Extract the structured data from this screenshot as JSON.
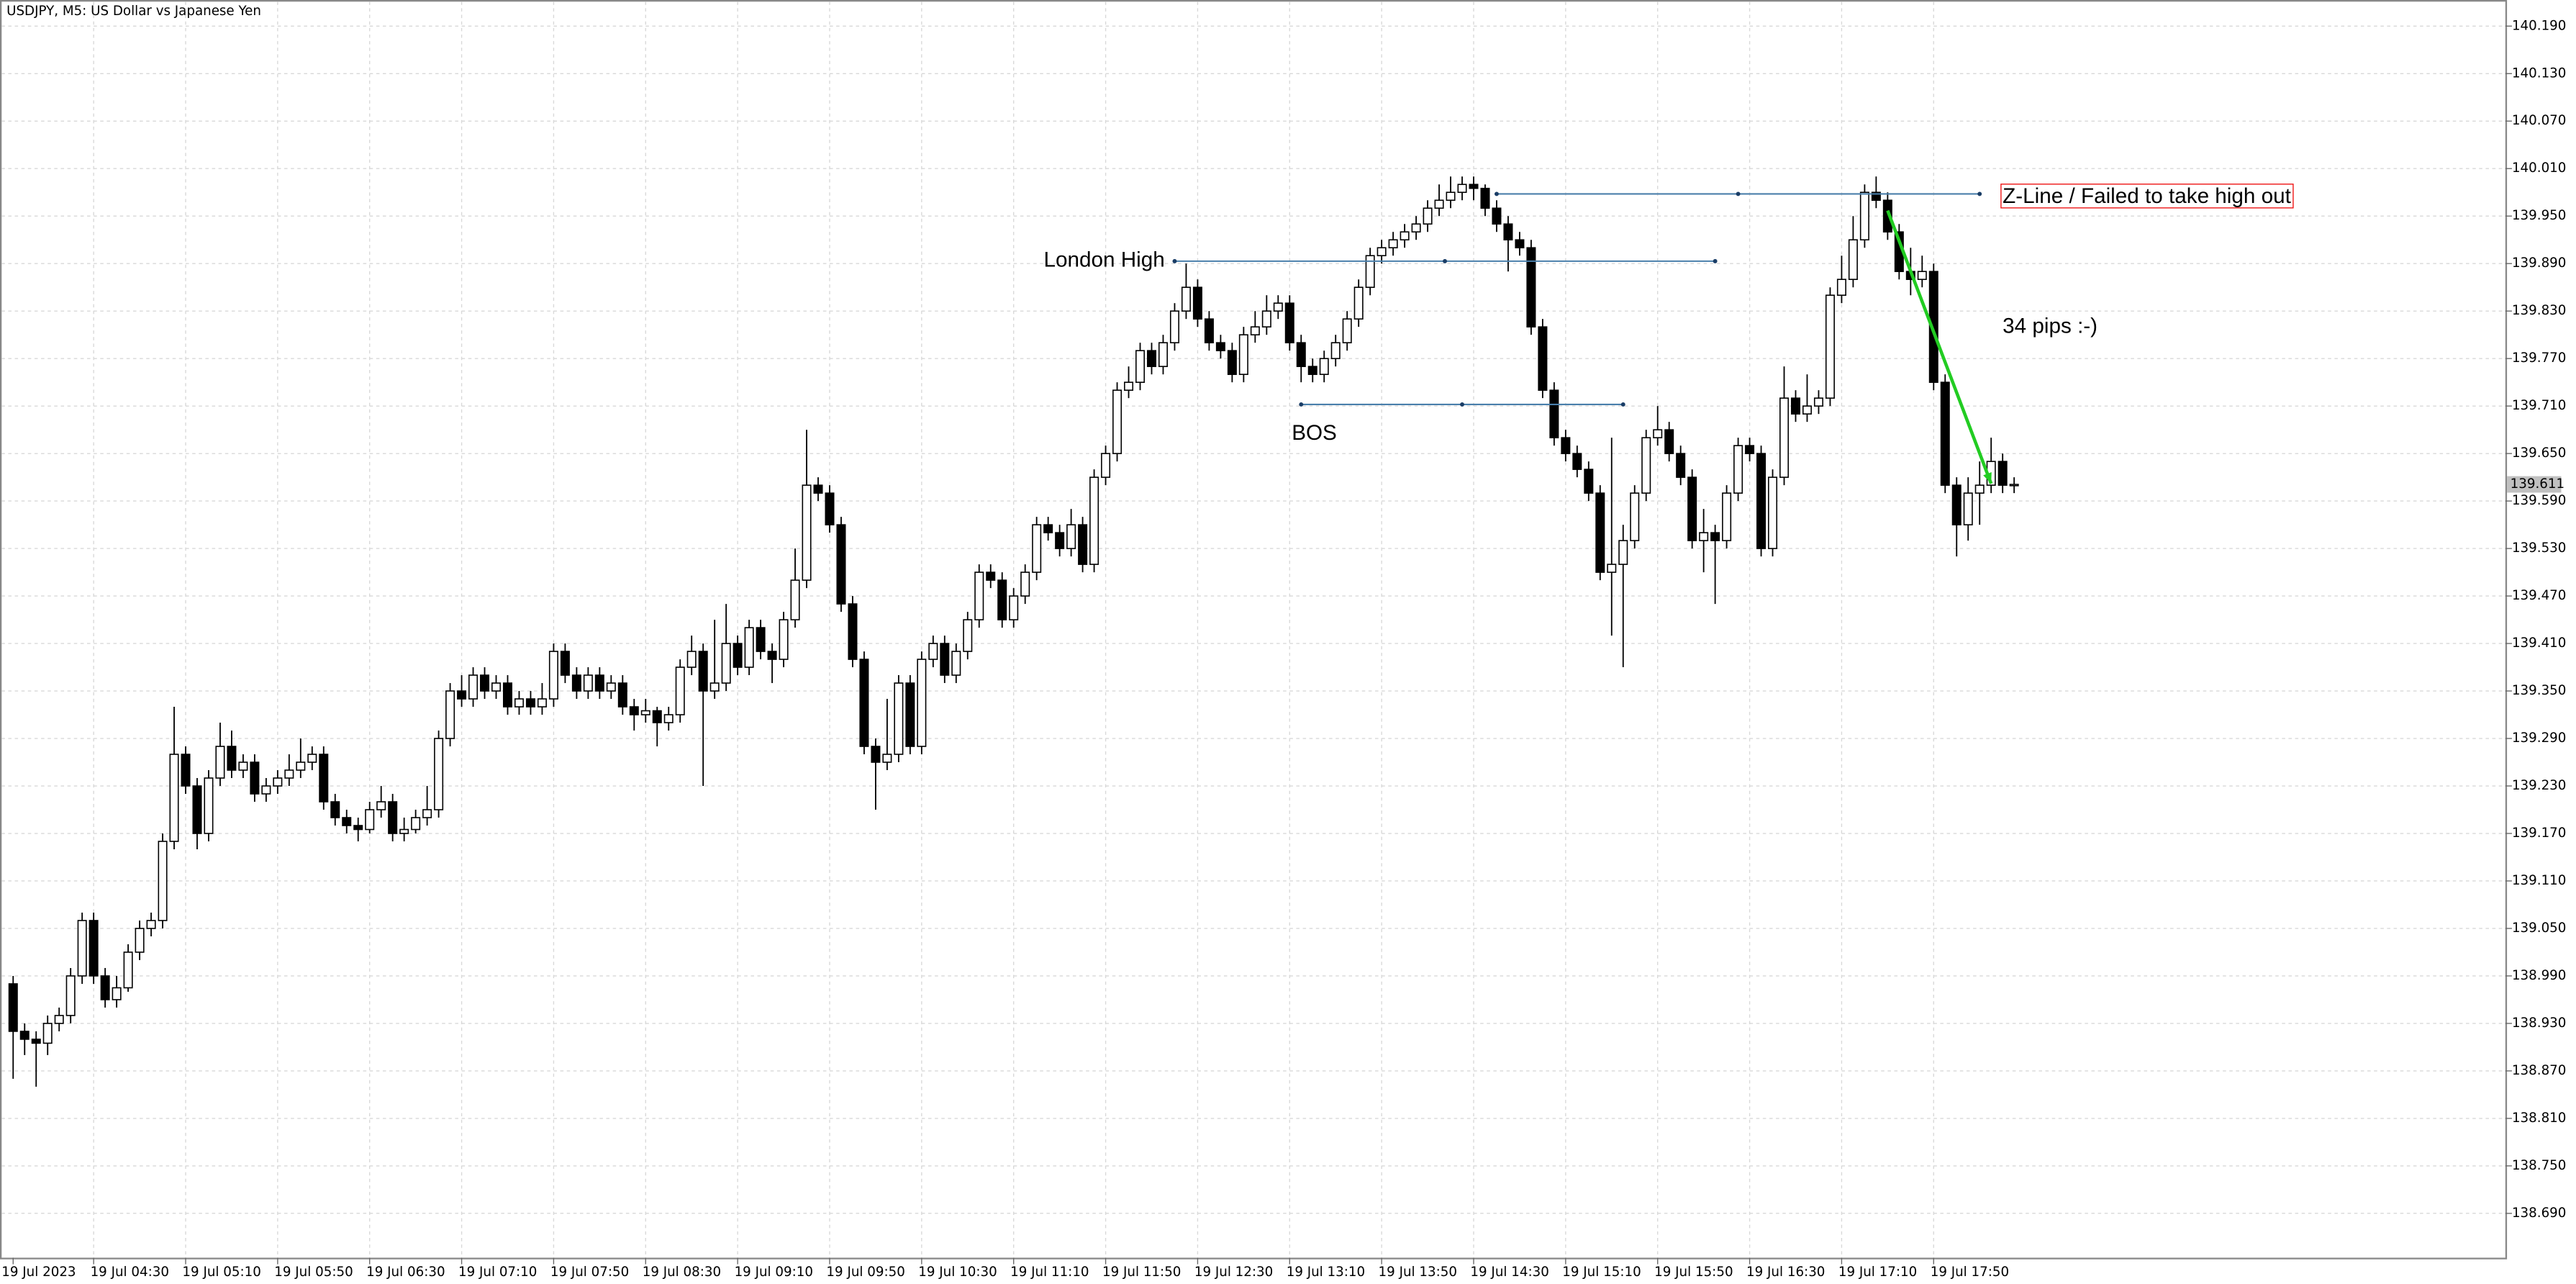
{
  "chart_data": {
    "type": "candlestick",
    "title": "USDJPY, M5:  US Dollar vs Japanese Yen",
    "categories": [
      "19 Jul 2023",
      null,
      null,
      null,
      null,
      null,
      null,
      "19 Jul 04:30",
      null,
      null,
      null,
      null,
      null,
      null,
      null,
      "19 Jul 05:10",
      null,
      null,
      null,
      null,
      null,
      null,
      null,
      "19 Jul 05:50",
      null,
      null,
      null,
      null,
      null,
      null,
      null,
      "19 Jul 06:30",
      null,
      null,
      null,
      null,
      null,
      null,
      null,
      "19 Jul 07:10",
      null,
      null,
      null,
      null,
      null,
      null,
      null,
      "19 Jul 07:50",
      null,
      null,
      null,
      null,
      null,
      null,
      null,
      "19 Jul 08:30",
      null,
      null,
      null,
      null,
      null,
      null,
      null,
      "19 Jul 09:10",
      null,
      null,
      null,
      null,
      null,
      null,
      null,
      "19 Jul 09:50",
      null,
      null,
      null,
      null,
      null,
      null,
      null,
      "19 Jul 10:30",
      null,
      null,
      null,
      null,
      null,
      null,
      null,
      "19 Jul 11:10",
      null,
      null,
      null,
      null,
      null,
      null,
      null,
      "19 Jul 11:50",
      null,
      null,
      null,
      null,
      null,
      null,
      null,
      "19 Jul 12:30",
      null,
      null,
      null,
      null,
      null,
      null,
      null,
      "19 Jul 13:10",
      null,
      null,
      null,
      null,
      null,
      null,
      null,
      "19 Jul 13:50",
      null,
      null,
      null,
      null,
      null,
      null,
      null,
      "19 Jul 14:30",
      null,
      null,
      null,
      null,
      null,
      null,
      null,
      "19 Jul 15:10",
      null,
      null,
      null,
      null,
      null,
      null,
      null,
      "19 Jul 15:50",
      null,
      null,
      null,
      null,
      null,
      null,
      null,
      "19 Jul 16:30",
      null,
      null,
      null,
      null,
      null,
      null,
      null,
      "19 Jul 17:10",
      null,
      null,
      null,
      null,
      null,
      null,
      null,
      "19 Jul 17:50",
      null,
      null,
      null,
      null,
      null,
      null,
      null
    ],
    "open": [
      138.98,
      138.92,
      138.91,
      138.905,
      138.93,
      138.94,
      138.99,
      139.06,
      138.99,
      138.96,
      138.975,
      139.02,
      139.05,
      139.06,
      139.16,
      139.27,
      139.23,
      139.17,
      139.24,
      139.28,
      139.25,
      139.26,
      139.22,
      139.23,
      139.24,
      139.25,
      139.26,
      139.27,
      139.21,
      139.19,
      139.18,
      139.175,
      139.2,
      139.21,
      139.17,
      139.175,
      139.19,
      139.2,
      139.29,
      139.35,
      139.34,
      139.37,
      139.35,
      139.36,
      139.33,
      139.34,
      139.33,
      139.34,
      139.4,
      139.37,
      139.35,
      139.37,
      139.35,
      139.36,
      139.33,
      139.32,
      139.325,
      139.31,
      139.32,
      139.38,
      139.4,
      139.35,
      139.36,
      139.41,
      139.38,
      139.43,
      139.4,
      139.39,
      139.44,
      139.49,
      139.61,
      139.6,
      139.56,
      139.46,
      139.39,
      139.28,
      139.26,
      139.27,
      139.36,
      139.28,
      139.39,
      139.41,
      139.37,
      139.4,
      139.44,
      139.5,
      139.49,
      139.44,
      139.47,
      139.5,
      139.56,
      139.55,
      139.53,
      139.56,
      139.51,
      139.62,
      139.65,
      139.73,
      139.74,
      139.78,
      139.76,
      139.79,
      139.83,
      139.86,
      139.82,
      139.79,
      139.78,
      139.75,
      139.8,
      139.81,
      139.83,
      139.84,
      139.79,
      139.76,
      139.75,
      139.77,
      139.79,
      139.82,
      139.86,
      139.9,
      139.91,
      139.92,
      139.93,
      139.94,
      139.96,
      139.97,
      139.98,
      139.99,
      139.985,
      139.96,
      139.94,
      139.92,
      139.91,
      139.81,
      139.73,
      139.67,
      139.65,
      139.63,
      139.6,
      139.5,
      139.51,
      139.54,
      139.6,
      139.67,
      139.68,
      139.65,
      139.62,
      139.54,
      139.55,
      139.54,
      139.6,
      139.66,
      139.65,
      139.53,
      139.62,
      139.72,
      139.7,
      139.71,
      139.72,
      139.85,
      139.87,
      139.92,
      139.98,
      139.97,
      139.93,
      139.88,
      139.87,
      139.88,
      139.74,
      139.61,
      139.56,
      139.6,
      139.61,
      139.64,
      139.61
    ],
    "high": [
      138.99,
      138.93,
      138.92,
      138.94,
      138.95,
      139.0,
      139.07,
      139.07,
      139.0,
      138.99,
      139.03,
      139.06,
      139.07,
      139.17,
      139.33,
      139.28,
      139.24,
      139.25,
      139.31,
      139.3,
      139.27,
      139.27,
      139.24,
      139.25,
      139.27,
      139.29,
      139.28,
      139.28,
      139.22,
      139.2,
      139.19,
      139.21,
      139.23,
      139.22,
      139.19,
      139.2,
      139.23,
      139.3,
      139.36,
      139.37,
      139.38,
      139.38,
      139.37,
      139.37,
      139.35,
      139.35,
      139.36,
      139.41,
      139.41,
      139.38,
      139.38,
      139.38,
      139.37,
      139.37,
      139.34,
      139.34,
      139.33,
      139.33,
      139.39,
      139.42,
      139.41,
      139.44,
      139.46,
      139.42,
      139.44,
      139.44,
      139.41,
      139.45,
      139.53,
      139.68,
      139.62,
      139.61,
      139.57,
      139.47,
      139.4,
      139.29,
      139.34,
      139.37,
      139.37,
      139.4,
      139.42,
      139.42,
      139.41,
      139.45,
      139.51,
      139.51,
      139.5,
      139.48,
      139.51,
      139.57,
      139.57,
      139.56,
      139.58,
      139.57,
      139.63,
      139.66,
      139.74,
      139.76,
      139.79,
      139.79,
      139.8,
      139.84,
      139.89,
      139.87,
      139.83,
      139.8,
      139.79,
      139.81,
      139.83,
      139.85,
      139.85,
      139.85,
      139.8,
      139.77,
      139.78,
      139.8,
      139.83,
      139.87,
      139.91,
      139.92,
      139.93,
      139.94,
      139.95,
      139.97,
      139.99,
      140.0,
      140.0,
      140.0,
      139.99,
      139.97,
      139.95,
      139.93,
      139.92,
      139.82,
      139.74,
      139.68,
      139.66,
      139.64,
      139.61,
      139.67,
      139.56,
      139.61,
      139.68,
      139.71,
      139.69,
      139.66,
      139.63,
      139.58,
      139.56,
      139.61,
      139.67,
      139.67,
      139.66,
      139.63,
      139.76,
      139.73,
      139.75,
      139.73,
      139.86,
      139.9,
      139.95,
      139.99,
      140.0,
      139.98,
      139.94,
      139.91,
      139.9,
      139.89,
      139.75,
      139.62,
      139.62,
      139.64,
      139.67,
      139.65,
      139.62
    ],
    "low": [
      138.86,
      138.89,
      138.85,
      138.89,
      138.92,
      138.93,
      138.98,
      138.98,
      138.95,
      138.95,
      138.97,
      139.01,
      139.04,
      139.05,
      139.15,
      139.22,
      139.15,
      139.16,
      139.23,
      139.24,
      139.24,
      139.21,
      139.21,
      139.22,
      139.23,
      139.24,
      139.25,
      139.2,
      139.18,
      139.17,
      139.16,
      139.17,
      139.19,
      139.16,
      139.16,
      139.17,
      139.18,
      139.19,
      139.28,
      139.33,
      139.33,
      139.34,
      139.34,
      139.32,
      139.32,
      139.32,
      139.32,
      139.33,
      139.36,
      139.34,
      139.34,
      139.34,
      139.34,
      139.32,
      139.3,
      139.31,
      139.28,
      139.3,
      139.31,
      139.37,
      139.23,
      139.34,
      139.35,
      139.37,
      139.37,
      139.39,
      139.36,
      139.38,
      139.43,
      139.48,
      139.59,
      139.55,
      139.45,
      139.38,
      139.27,
      139.2,
      139.25,
      139.26,
      139.27,
      139.27,
      139.38,
      139.36,
      139.36,
      139.39,
      139.43,
      139.48,
      139.43,
      139.43,
      139.46,
      139.49,
      139.54,
      139.52,
      139.52,
      139.5,
      139.5,
      139.61,
      139.64,
      139.72,
      139.73,
      139.75,
      139.75,
      139.78,
      139.82,
      139.81,
      139.78,
      139.77,
      139.74,
      139.74,
      139.79,
      139.8,
      139.82,
      139.78,
      139.74,
      139.74,
      139.74,
      139.76,
      139.78,
      139.81,
      139.85,
      139.89,
      139.9,
      139.91,
      139.92,
      139.93,
      139.95,
      139.96,
      139.97,
      139.97,
      139.95,
      139.93,
      139.88,
      139.9,
      139.8,
      139.72,
      139.66,
      139.64,
      139.62,
      139.59,
      139.49,
      139.42,
      139.38,
      139.53,
      139.59,
      139.66,
      139.64,
      139.61,
      139.53,
      139.5,
      139.46,
      139.53,
      139.59,
      139.64,
      139.52,
      139.52,
      139.61,
      139.69,
      139.69,
      139.7,
      139.71,
      139.84,
      139.86,
      139.91,
      139.96,
      139.92,
      139.87,
      139.85,
      139.86,
      139.73,
      139.6,
      139.52,
      139.54,
      139.56,
      139.6,
      139.6,
      139.6
    ],
    "close": [
      138.92,
      138.91,
      138.905,
      138.93,
      138.94,
      138.99,
      139.06,
      138.99,
      138.96,
      138.975,
      139.02,
      139.05,
      139.06,
      139.16,
      139.27,
      139.23,
      139.17,
      139.24,
      139.28,
      139.25,
      139.26,
      139.22,
      139.23,
      139.24,
      139.25,
      139.26,
      139.27,
      139.21,
      139.19,
      139.18,
      139.175,
      139.2,
      139.21,
      139.17,
      139.175,
      139.19,
      139.2,
      139.29,
      139.35,
      139.34,
      139.37,
      139.35,
      139.36,
      139.33,
      139.34,
      139.33,
      139.34,
      139.4,
      139.37,
      139.35,
      139.37,
      139.35,
      139.36,
      139.33,
      139.32,
      139.325,
      139.31,
      139.32,
      139.38,
      139.4,
      139.35,
      139.36,
      139.41,
      139.38,
      139.43,
      139.4,
      139.39,
      139.44,
      139.49,
      139.61,
      139.6,
      139.56,
      139.46,
      139.39,
      139.28,
      139.26,
      139.27,
      139.36,
      139.28,
      139.39,
      139.41,
      139.37,
      139.4,
      139.44,
      139.5,
      139.49,
      139.44,
      139.47,
      139.5,
      139.56,
      139.55,
      139.53,
      139.56,
      139.51,
      139.62,
      139.65,
      139.73,
      139.74,
      139.78,
      139.76,
      139.79,
      139.83,
      139.86,
      139.82,
      139.79,
      139.78,
      139.75,
      139.8,
      139.81,
      139.83,
      139.84,
      139.79,
      139.76,
      139.75,
      139.77,
      139.79,
      139.82,
      139.86,
      139.9,
      139.91,
      139.92,
      139.93,
      139.94,
      139.96,
      139.97,
      139.98,
      139.99,
      139.985,
      139.96,
      139.94,
      139.92,
      139.91,
      139.81,
      139.73,
      139.67,
      139.65,
      139.63,
      139.6,
      139.5,
      139.51,
      139.54,
      139.6,
      139.67,
      139.68,
      139.65,
      139.62,
      139.54,
      139.55,
      139.54,
      139.6,
      139.66,
      139.65,
      139.53,
      139.62,
      139.72,
      139.7,
      139.71,
      139.72,
      139.85,
      139.87,
      139.92,
      139.98,
      139.97,
      139.93,
      139.88,
      139.87,
      139.88,
      139.74,
      139.61,
      139.56,
      139.6,
      139.61,
      139.64,
      139.61,
      139.611
    ],
    "color_up": "#ffffff",
    "color_down": "#000000",
    "ylim": [
      138.634,
      140.223
    ],
    "yticks": [
      {
        "value": 140.19,
        "label": "140.190"
      },
      {
        "value": 140.13,
        "label": "140.130"
      },
      {
        "value": 140.07,
        "label": "140.070"
      },
      {
        "value": 140.01,
        "label": "140.010"
      },
      {
        "value": 139.95,
        "label": "139.950"
      },
      {
        "value": 139.89,
        "label": "139.890"
      },
      {
        "value": 139.83,
        "label": "139.830"
      },
      {
        "value": 139.77,
        "label": "139.770"
      },
      {
        "value": 139.71,
        "label": "139.710"
      },
      {
        "value": 139.65,
        "label": "139.650"
      },
      {
        "value": 139.59,
        "label": "139.590"
      },
      {
        "value": 139.53,
        "label": "139.530"
      },
      {
        "value": 139.47,
        "label": "139.470"
      },
      {
        "value": 139.41,
        "label": "139.410"
      },
      {
        "value": 139.35,
        "label": "139.350"
      },
      {
        "value": 139.29,
        "label": "139.290"
      },
      {
        "value": 139.23,
        "label": "139.230"
      },
      {
        "value": 139.17,
        "label": "139.170"
      },
      {
        "value": 139.11,
        "label": "139.110"
      },
      {
        "value": 139.05,
        "label": "139.050"
      },
      {
        "value": 138.99,
        "label": "138.990"
      },
      {
        "value": 138.93,
        "label": "138.930"
      },
      {
        "value": 138.87,
        "label": "138.870"
      },
      {
        "value": 138.81,
        "label": "138.810"
      },
      {
        "value": 138.75,
        "label": "138.750"
      },
      {
        "value": 138.69,
        "label": "138.690"
      }
    ],
    "grid": true,
    "current_price": {
      "value": 139.611,
      "label": "139.611"
    },
    "lines": [
      {
        "label": "Z-Line / Failed to take high out",
        "price": 139.978,
        "from": 129,
        "to": 171,
        "color": "#4a7fab"
      },
      {
        "label": "London High",
        "price": 139.893,
        "from": 101,
        "to": 148,
        "color": "#4a7fab"
      },
      {
        "label": "BOS",
        "price": 139.712,
        "from": 112,
        "to": 140,
        "color": "#4a7fab"
      }
    ],
    "arrow": {
      "label": "34 pips :-)",
      "from": [
        163,
        139.957
      ],
      "to": [
        172,
        139.612
      ],
      "color": "#22cc22"
    },
    "annotation_color": "#ee1111"
  }
}
